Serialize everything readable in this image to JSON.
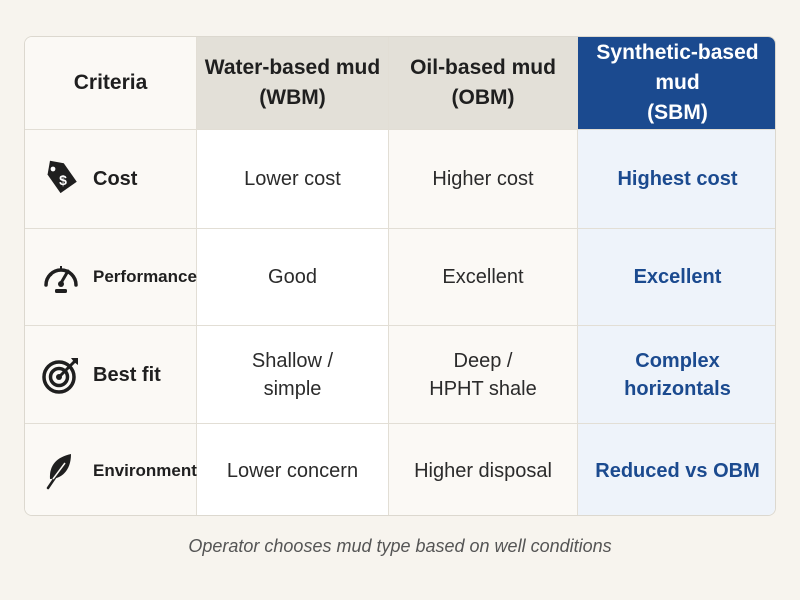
{
  "table": {
    "header": {
      "criteria": "Criteria",
      "wbm": [
        "Water-based mud",
        "(WBM)"
      ],
      "obm": [
        "Oil-based mud",
        "(OBM)"
      ],
      "sbm": [
        "Synthetic-based mud",
        "(SBM)"
      ]
    },
    "rows": [
      {
        "criterion": "Cost",
        "icon": "price-tag-dollar-icon",
        "wbm": [
          "Lower cost"
        ],
        "obm": [
          "Higher cost"
        ],
        "sbm": [
          "Highest cost"
        ]
      },
      {
        "criterion": "Performance",
        "icon": "speedometer-icon",
        "wbm": [
          "Good"
        ],
        "obm": [
          "Excellent"
        ],
        "sbm": [
          "Excellent"
        ]
      },
      {
        "criterion": "Best fit",
        "icon": "target-arrow-icon",
        "wbm": [
          "Shallow /",
          "simple"
        ],
        "obm": [
          "Deep /",
          "HPHT shale"
        ],
        "sbm": [
          "Complex",
          "horizontals"
        ]
      },
      {
        "criterion": "Environmental",
        "icon": "leaf-icon",
        "wbm": [
          "Lower concern"
        ],
        "obm": [
          "Higher disposal"
        ],
        "sbm": [
          "Reduced vs OBM"
        ]
      }
    ]
  },
  "caption": "Operator chooses mud type based on well conditions",
  "colors": {
    "accent_blue": "#1b4a8f",
    "header_gray": "#e3e0d8",
    "sbm_cell_bg": "#eef3fa",
    "page_bg": "#f7f4ee"
  }
}
